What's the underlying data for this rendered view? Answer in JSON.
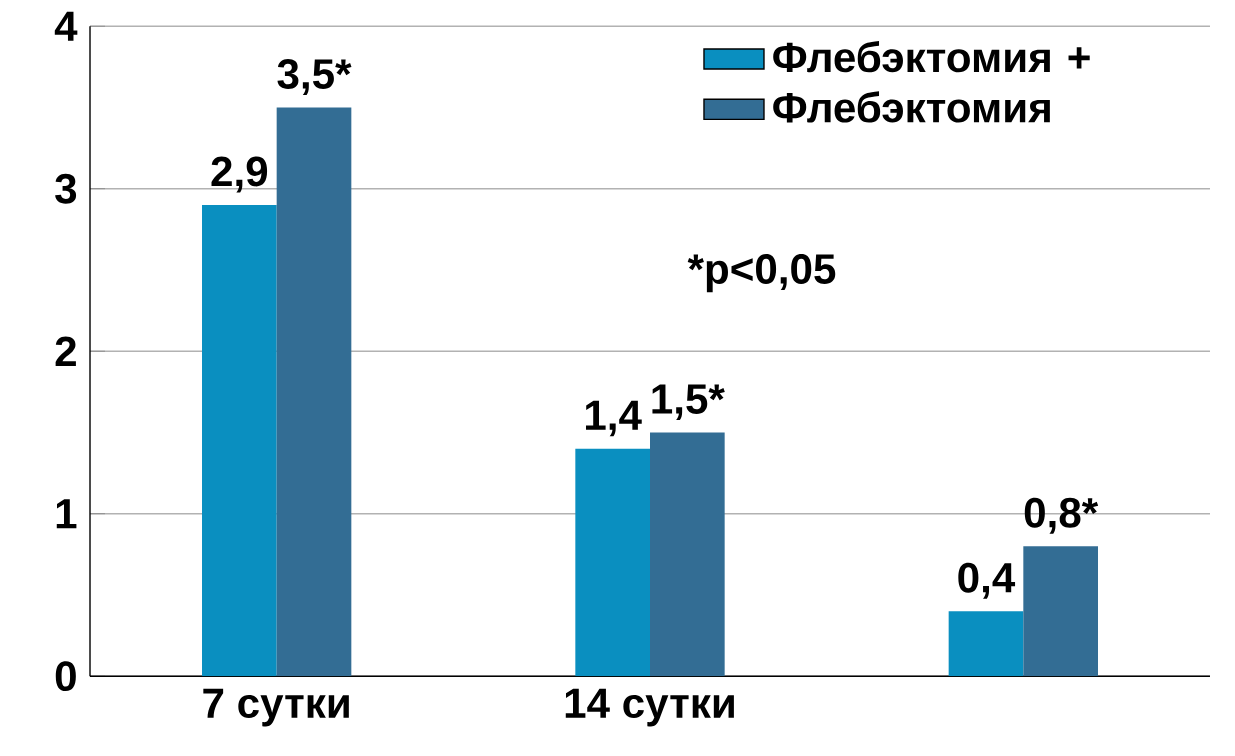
{
  "chart_data": {
    "type": "bar",
    "categories": [
      "7 сутки",
      "14 сутки",
      null
    ],
    "series": [
      {
        "name": "Флебэктомия +",
        "color": "#0a8fc0",
        "values": [
          2.9,
          1.4,
          0.4
        ],
        "value_labels": [
          "2,9",
          "1,4",
          "0,4"
        ]
      },
      {
        "name": "Флебэктомия",
        "color": "#336d94",
        "values": [
          3.5,
          1.5,
          0.8
        ],
        "value_labels": [
          "3,5*",
          "1,5*",
          "0,8*"
        ]
      }
    ],
    "ylim": [
      0,
      4
    ],
    "yticks": [
      0,
      1,
      2,
      3,
      4
    ],
    "grid": "y",
    "legend": "top right",
    "annotations": [
      "*p<0,05"
    ]
  }
}
